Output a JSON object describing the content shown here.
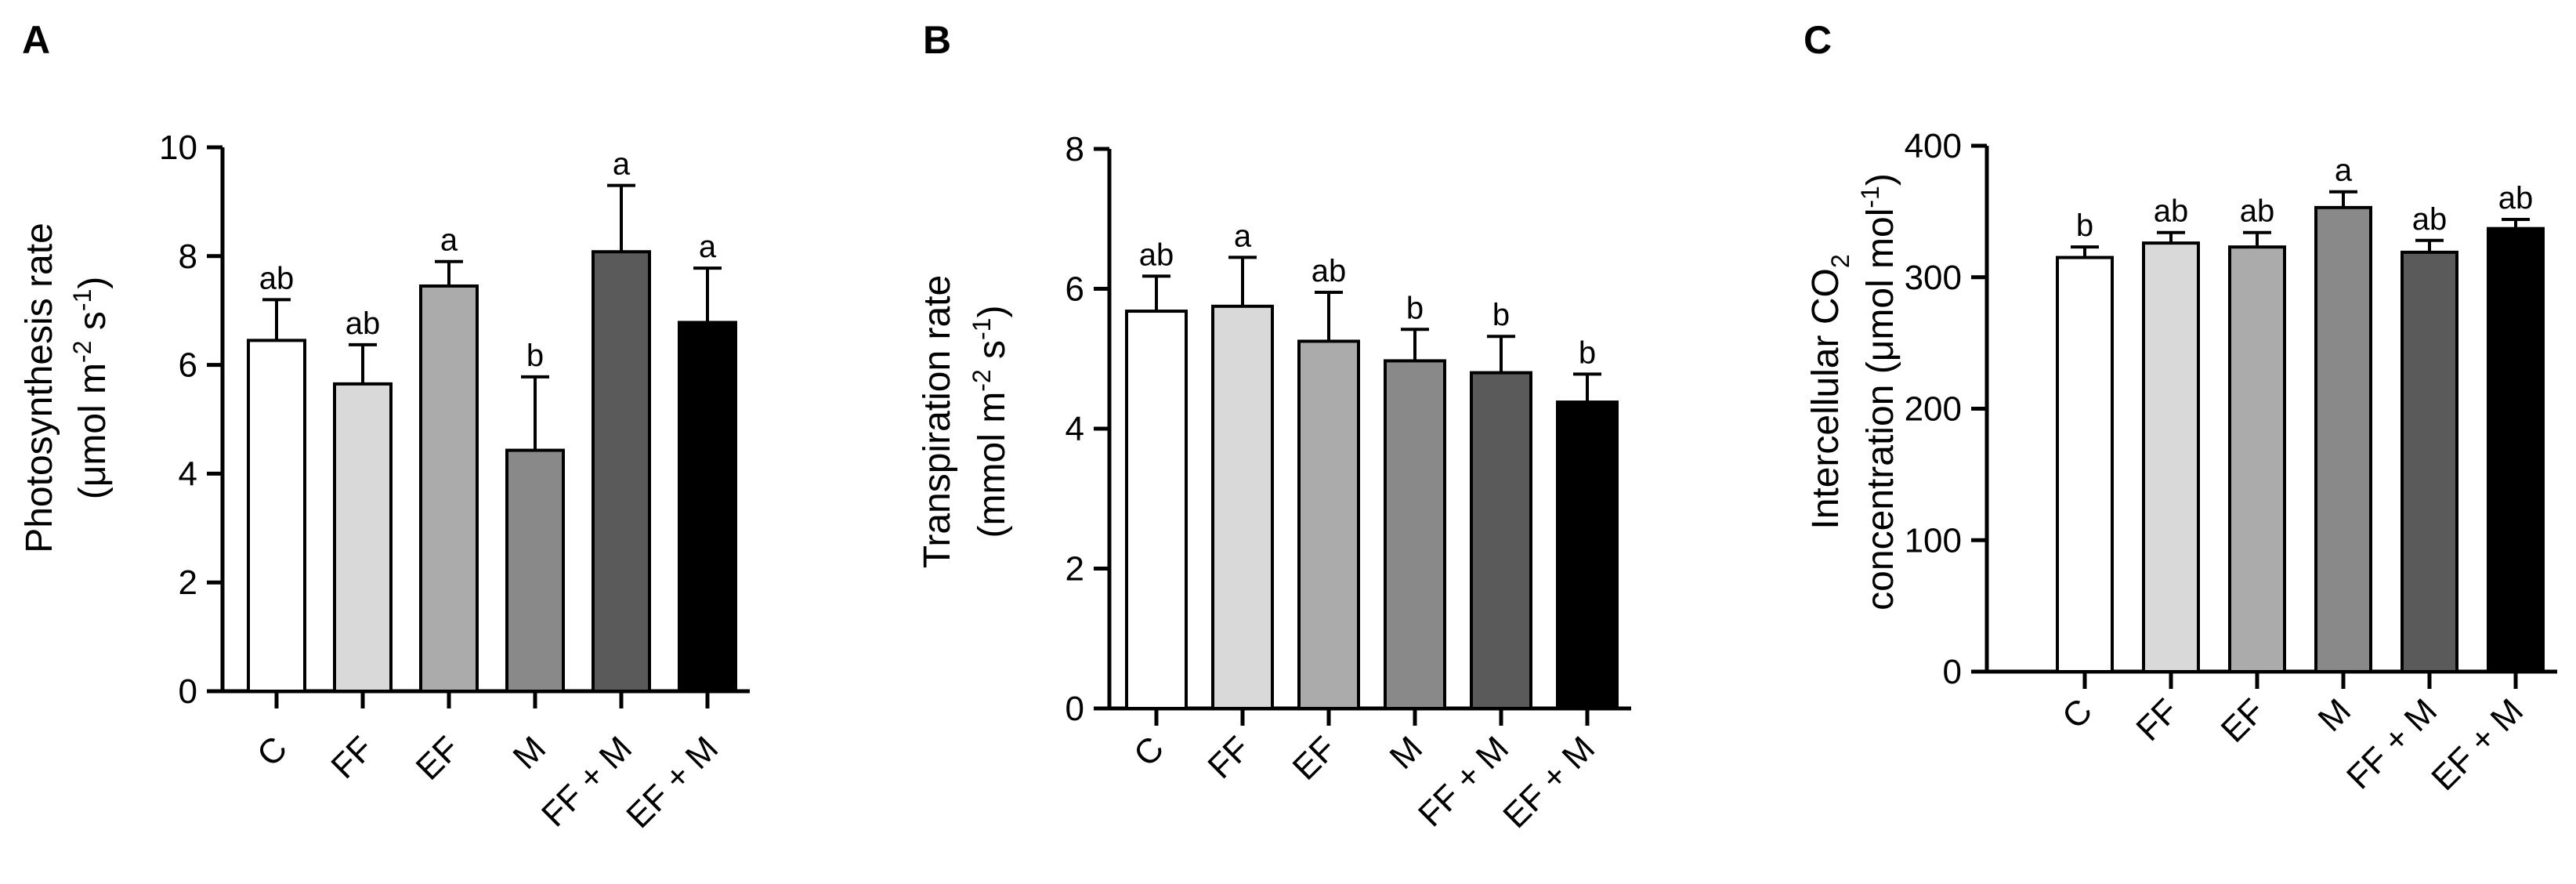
{
  "chart_data": [
    {
      "panel": "A",
      "type": "bar",
      "categories": [
        "C",
        "FF",
        "EF",
        "M",
        "FF + M",
        "EF + M"
      ],
      "values": [
        6.45,
        5.65,
        7.45,
        4.43,
        8.08,
        6.78
      ],
      "errors": [
        0.75,
        0.72,
        0.45,
        1.35,
        1.22,
        1.0
      ],
      "significance": [
        "ab",
        "ab",
        "a",
        "b",
        "a",
        "a"
      ],
      "bar_colors": [
        "#ffffff",
        "#d9d9d9",
        "#ababab",
        "#898989",
        "#5a5a5a",
        "#000000"
      ],
      "ylabel_line1": "Photosynthesis rate",
      "ylabel_line2": "(μmol m",
      "ylabel_sup1": "-2",
      "ylabel_mid": " s",
      "ylabel_sup2": "-1",
      "ylabel_end": ")",
      "ylim": [
        0,
        10
      ],
      "yticks": [
        "0",
        "2",
        "4",
        "6",
        "8",
        "10"
      ],
      "grid": false
    },
    {
      "panel": "B",
      "type": "bar",
      "categories": [
        "C",
        "FF",
        "EF",
        "M",
        "FF + M",
        "EF + M"
      ],
      "values": [
        5.68,
        5.75,
        5.25,
        4.97,
        4.8,
        4.38
      ],
      "errors": [
        0.5,
        0.7,
        0.7,
        0.45,
        0.52,
        0.4
      ],
      "significance": [
        "ab",
        "a",
        "ab",
        "b",
        "b",
        "b"
      ],
      "bar_colors": [
        "#ffffff",
        "#d9d9d9",
        "#ababab",
        "#898989",
        "#5a5a5a",
        "#000000"
      ],
      "ylabel_line1": "Transpiration rate",
      "ylabel_line2": "(mmol m",
      "ylabel_sup1": "-2",
      "ylabel_mid": " s",
      "ylabel_sup2": "-1",
      "ylabel_end": ")",
      "ylim": [
        0,
        8
      ],
      "yticks": [
        "0",
        "2",
        "4",
        "6",
        "8"
      ],
      "grid": false
    },
    {
      "panel": "C",
      "type": "bar",
      "categories": [
        "C",
        "FF",
        "EF",
        "M",
        "FF + M",
        "EF + M"
      ],
      "values": [
        315,
        326,
        323,
        353,
        319,
        337
      ],
      "errors": [
        8,
        8,
        11,
        12,
        9,
        7
      ],
      "significance": [
        "b",
        "ab",
        "ab",
        "a",
        "ab",
        "ab"
      ],
      "bar_colors": [
        "#ffffff",
        "#d9d9d9",
        "#ababab",
        "#898989",
        "#5a5a5a",
        "#000000"
      ],
      "ylabel_line1a": "Intercellular CO",
      "ylabel_sub": "2",
      "ylabel_line2": "concentration (μmol mol",
      "ylabel_sup1": "-1",
      "ylabel_end": ")",
      "ylim": [
        0,
        400
      ],
      "yticks": [
        "0",
        "100",
        "200",
        "300",
        "400"
      ],
      "grid": false
    }
  ]
}
